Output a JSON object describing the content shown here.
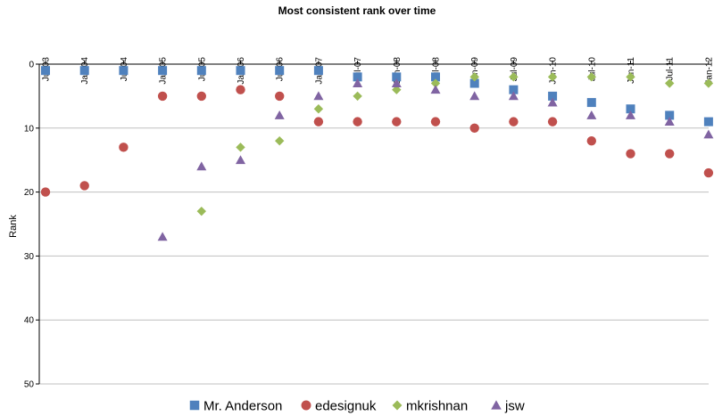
{
  "chart_data": {
    "type": "scatter",
    "title": "Most consistent rank over time",
    "xlabel": "",
    "ylabel": "Rank",
    "x_axis_position": "top",
    "y_inverted": true,
    "ylim": [
      0,
      50
    ],
    "yticks": [
      0,
      10,
      20,
      30,
      40,
      50
    ],
    "grid": true,
    "legend": "bottom",
    "categories": [
      "Jul-03",
      "Jan-04",
      "Jul-04",
      "Jan-05",
      "Jul-05",
      "Jan-06",
      "Jul-06",
      "Jan-07",
      "Jul-07",
      "Jan-08",
      "Jul-08",
      "Jan-09",
      "Jul-09",
      "Jan-10",
      "Jul-10",
      "Jan-11",
      "Jul-11",
      "Jan-12"
    ],
    "series": [
      {
        "name": "Mr. Anderson",
        "marker": "square",
        "color": "#4f81bd",
        "values": [
          1,
          1,
          1,
          1,
          1,
          1,
          1,
          1,
          2,
          2,
          2,
          3,
          4,
          5,
          6,
          7,
          8,
          9
        ]
      },
      {
        "name": "edesignuk",
        "marker": "circle",
        "color": "#c0504d",
        "values": [
          20,
          19,
          13,
          5,
          5,
          4,
          5,
          9,
          9,
          9,
          9,
          10,
          9,
          9,
          12,
          14,
          14,
          17
        ]
      },
      {
        "name": "mkrishnan",
        "marker": "diamond",
        "color": "#9bbb59",
        "values": [
          null,
          null,
          null,
          null,
          23,
          13,
          12,
          7,
          5,
          4,
          3,
          2,
          2,
          2,
          2,
          2,
          3,
          3
        ]
      },
      {
        "name": "jsw",
        "marker": "triangle",
        "color": "#8064a2",
        "values": [
          null,
          null,
          null,
          27,
          16,
          15,
          8,
          5,
          3,
          3,
          4,
          5,
          5,
          6,
          8,
          8,
          9,
          11
        ]
      }
    ]
  }
}
